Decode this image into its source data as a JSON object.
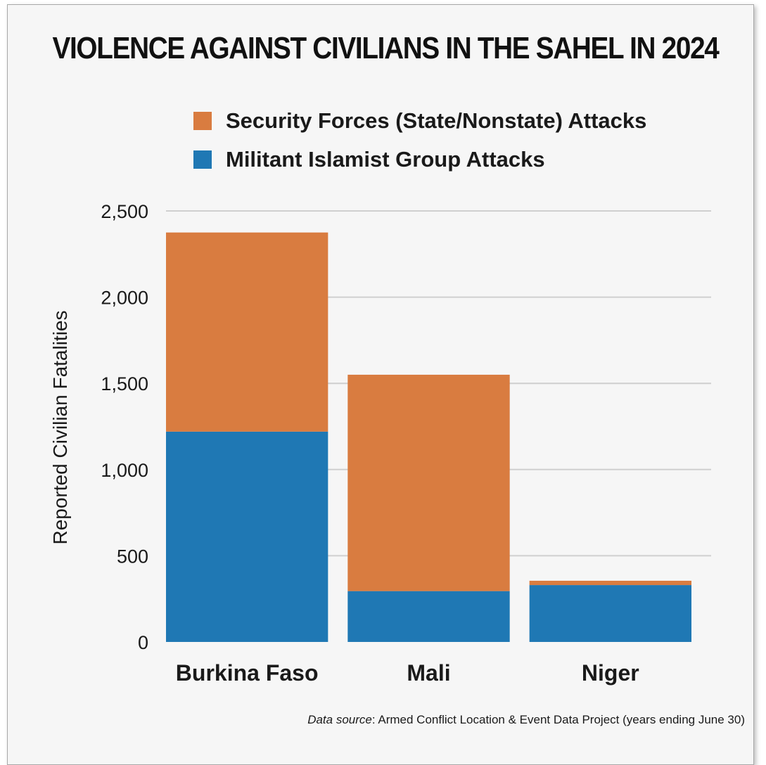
{
  "title": "VIOLENCE AGAINST CIVILIANS IN THE SAHEL IN 2024",
  "source": {
    "prefix": "Data source",
    "text": ": Armed Conflict Location & Event Data Project (years ending June 30)"
  },
  "chart_data": {
    "type": "bar",
    "stacked": true,
    "categories": [
      "Burkina Faso",
      "Mali",
      "Niger"
    ],
    "series": [
      {
        "name": "Militant Islamist Group Attacks",
        "color": "#1f78b4",
        "values": [
          1220,
          295,
          330
        ]
      },
      {
        "name": "Security Forces (State/Nonstate) Attacks",
        "color": "#d97c40",
        "values": [
          1155,
          1255,
          25
        ]
      }
    ],
    "legend_order": [
      1,
      0
    ],
    "ylabel": "Reported Civilian Fatalities",
    "xlabel": "",
    "ylim": [
      0,
      2500
    ],
    "yticks": [
      0,
      500,
      1000,
      1500,
      2000,
      2500
    ],
    "ytick_labels": [
      "0",
      "500",
      "1,000",
      "1,500",
      "2,000",
      "2,500"
    ],
    "grid": true,
    "legend_position": "top"
  }
}
